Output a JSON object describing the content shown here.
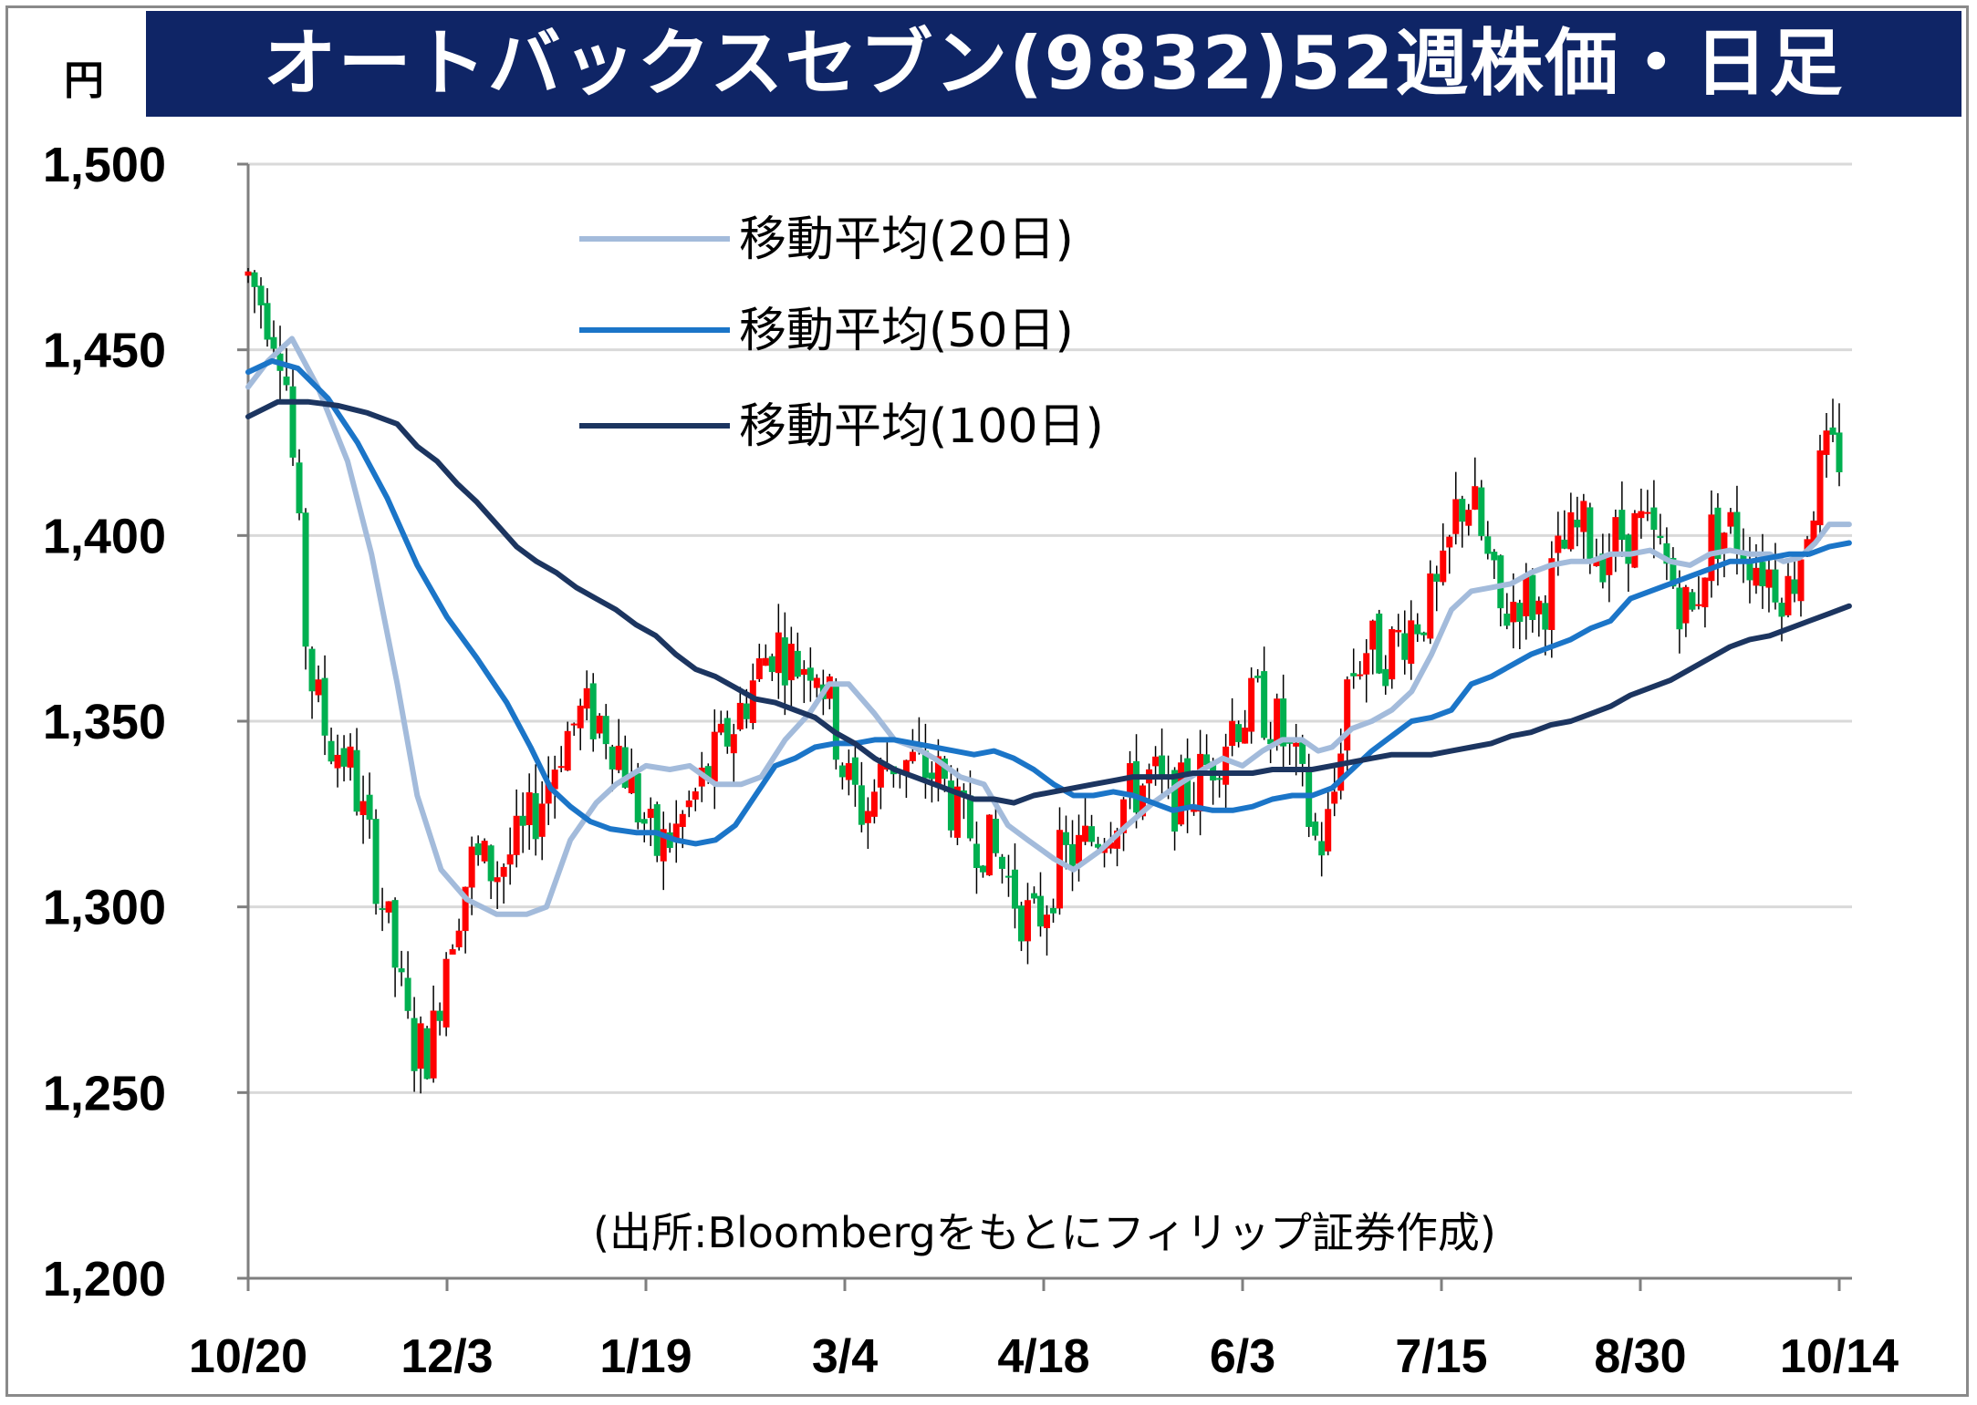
{
  "header": {
    "unit": "円",
    "title": "オートバックスセブン(9832)52週株価・日足"
  },
  "chart_data": {
    "type": "candlestick",
    "ylim": [
      1200,
      1500
    ],
    "yticks": [
      1200,
      1250,
      1300,
      1350,
      1400,
      1450,
      1500
    ],
    "ytick_labels": [
      "1,200",
      "1,250",
      "1,300",
      "1,350",
      "1,400",
      "1,450",
      "1,500"
    ],
    "xlim": [
      0,
      8
    ],
    "xticks": [
      0,
      1,
      2,
      3,
      4,
      5,
      6,
      7,
      8
    ],
    "xtick_labels": [
      "10/20",
      "12/3",
      "1/19",
      "3/4",
      "4/18",
      "6/3",
      "7/15",
      "8/30",
      "10/14"
    ],
    "grid": true,
    "legend_position": "top-center",
    "annotation": "(出所:Bloombergをもとにフィリップ証券作成)",
    "up_color": "#ff0000",
    "down_color": "#00b050",
    "candle_anchors": [
      [
        0.0,
        1470
      ],
      [
        0.1,
        1460
      ],
      [
        0.18,
        1450
      ],
      [
        0.24,
        1410
      ],
      [
        0.3,
        1365
      ],
      [
        0.4,
        1345
      ],
      [
        0.5,
        1340
      ],
      [
        0.62,
        1315
      ],
      [
        0.72,
        1290
      ],
      [
        0.82,
        1262
      ],
      [
        0.92,
        1262
      ],
      [
        1.0,
        1290
      ],
      [
        1.12,
        1312
      ],
      [
        1.25,
        1310
      ],
      [
        1.38,
        1318
      ],
      [
        1.48,
        1330
      ],
      [
        1.58,
        1345
      ],
      [
        1.68,
        1352
      ],
      [
        1.78,
        1350
      ],
      [
        1.86,
        1343
      ],
      [
        1.95,
        1328
      ],
      [
        2.05,
        1315
      ],
      [
        2.15,
        1320
      ],
      [
        2.25,
        1330
      ],
      [
        2.35,
        1340
      ],
      [
        2.45,
        1350
      ],
      [
        2.55,
        1362
      ],
      [
        2.65,
        1372
      ],
      [
        2.75,
        1365
      ],
      [
        2.85,
        1368
      ],
      [
        2.92,
        1355
      ],
      [
        3.0,
        1335
      ],
      [
        3.1,
        1325
      ],
      [
        3.22,
        1340
      ],
      [
        3.35,
        1338
      ],
      [
        3.48,
        1335
      ],
      [
        3.58,
        1322
      ],
      [
        3.7,
        1318
      ],
      [
        3.8,
        1310
      ],
      [
        3.88,
        1300
      ],
      [
        3.95,
        1295
      ],
      [
        4.0,
        1300
      ],
      [
        4.08,
        1312
      ],
      [
        4.18,
        1315
      ],
      [
        4.3,
        1322
      ],
      [
        4.42,
        1330
      ],
      [
        4.55,
        1335
      ],
      [
        4.62,
        1328
      ],
      [
        4.75,
        1332
      ],
      [
        4.85,
        1340
      ],
      [
        4.95,
        1350
      ],
      [
        5.08,
        1355
      ],
      [
        5.18,
        1348
      ],
      [
        5.28,
        1335
      ],
      [
        5.38,
        1315
      ],
      [
        5.45,
        1325
      ],
      [
        5.52,
        1360
      ],
      [
        5.62,
        1370
      ],
      [
        5.72,
        1368
      ],
      [
        5.82,
        1375
      ],
      [
        5.92,
        1380
      ],
      [
        6.0,
        1385
      ],
      [
        6.08,
        1408
      ],
      [
        6.15,
        1410
      ],
      [
        6.22,
        1395
      ],
      [
        6.3,
        1378
      ],
      [
        6.4,
        1385
      ],
      [
        6.5,
        1380
      ],
      [
        6.6,
        1395
      ],
      [
        6.7,
        1402
      ],
      [
        6.8,
        1395
      ],
      [
        6.9,
        1400
      ],
      [
        7.0,
        1402
      ],
      [
        7.1,
        1395
      ],
      [
        7.18,
        1385
      ],
      [
        7.26,
        1378
      ],
      [
        7.35,
        1400
      ],
      [
        7.45,
        1402
      ],
      [
        7.55,
        1395
      ],
      [
        7.65,
        1390
      ],
      [
        7.75,
        1385
      ],
      [
        7.85,
        1405
      ],
      [
        7.92,
        1420
      ],
      [
        8.0,
        1422
      ]
    ],
    "series": [
      {
        "name": "移動平均(20日)",
        "color": "#a3bbdb",
        "points": [
          [
            0.0,
            1440
          ],
          [
            0.1,
            1447
          ],
          [
            0.22,
            1453
          ],
          [
            0.35,
            1440
          ],
          [
            0.5,
            1420
          ],
          [
            0.62,
            1395
          ],
          [
            0.75,
            1360
          ],
          [
            0.85,
            1330
          ],
          [
            0.97,
            1310
          ],
          [
            1.1,
            1302
          ],
          [
            1.25,
            1298
          ],
          [
            1.4,
            1298
          ],
          [
            1.5,
            1300
          ],
          [
            1.62,
            1318
          ],
          [
            1.75,
            1328
          ],
          [
            1.85,
            1333
          ],
          [
            2.0,
            1338
          ],
          [
            2.12,
            1337
          ],
          [
            2.22,
            1338
          ],
          [
            2.35,
            1333
          ],
          [
            2.48,
            1333
          ],
          [
            2.58,
            1335
          ],
          [
            2.7,
            1345
          ],
          [
            2.82,
            1352
          ],
          [
            2.92,
            1360
          ],
          [
            3.02,
            1360
          ],
          [
            3.15,
            1352
          ],
          [
            3.25,
            1345
          ],
          [
            3.35,
            1343
          ],
          [
            3.45,
            1340
          ],
          [
            3.58,
            1335
          ],
          [
            3.7,
            1333
          ],
          [
            3.82,
            1322
          ],
          [
            3.92,
            1318
          ],
          [
            4.05,
            1313
          ],
          [
            4.15,
            1310
          ],
          [
            4.28,
            1315
          ],
          [
            4.42,
            1322
          ],
          [
            4.55,
            1328
          ],
          [
            4.68,
            1333
          ],
          [
            4.8,
            1337
          ],
          [
            4.9,
            1340
          ],
          [
            5.0,
            1338
          ],
          [
            5.1,
            1342
          ],
          [
            5.2,
            1345
          ],
          [
            5.3,
            1345
          ],
          [
            5.38,
            1342
          ],
          [
            5.45,
            1343
          ],
          [
            5.55,
            1348
          ],
          [
            5.65,
            1350
          ],
          [
            5.75,
            1353
          ],
          [
            5.85,
            1358
          ],
          [
            5.95,
            1368
          ],
          [
            6.05,
            1380
          ],
          [
            6.15,
            1385
          ],
          [
            6.25,
            1386
          ],
          [
            6.35,
            1387
          ],
          [
            6.45,
            1390
          ],
          [
            6.55,
            1392
          ],
          [
            6.65,
            1393
          ],
          [
            6.75,
            1393
          ],
          [
            6.85,
            1395
          ],
          [
            6.95,
            1395
          ],
          [
            7.05,
            1396
          ],
          [
            7.15,
            1393
          ],
          [
            7.25,
            1392
          ],
          [
            7.35,
            1395
          ],
          [
            7.45,
            1396
          ],
          [
            7.55,
            1395
          ],
          [
            7.65,
            1395
          ],
          [
            7.72,
            1393
          ],
          [
            7.8,
            1394
          ],
          [
            7.88,
            1398
          ],
          [
            7.95,
            1403
          ],
          [
            8.05,
            1403
          ]
        ]
      },
      {
        "name": "移動平均(50日)",
        "color": "#1b75c8",
        "points": [
          [
            0.0,
            1444
          ],
          [
            0.12,
            1447
          ],
          [
            0.25,
            1445
          ],
          [
            0.4,
            1437
          ],
          [
            0.55,
            1425
          ],
          [
            0.7,
            1410
          ],
          [
            0.85,
            1392
          ],
          [
            1.0,
            1378
          ],
          [
            1.15,
            1367
          ],
          [
            1.3,
            1355
          ],
          [
            1.42,
            1343
          ],
          [
            1.52,
            1332
          ],
          [
            1.62,
            1327
          ],
          [
            1.72,
            1323
          ],
          [
            1.82,
            1321
          ],
          [
            1.95,
            1320
          ],
          [
            2.05,
            1320
          ],
          [
            2.15,
            1318
          ],
          [
            2.25,
            1317
          ],
          [
            2.35,
            1318
          ],
          [
            2.45,
            1322
          ],
          [
            2.55,
            1330
          ],
          [
            2.65,
            1338
          ],
          [
            2.75,
            1340
          ],
          [
            2.85,
            1343
          ],
          [
            2.95,
            1344
          ],
          [
            3.05,
            1344
          ],
          [
            3.15,
            1345
          ],
          [
            3.25,
            1345
          ],
          [
            3.35,
            1344
          ],
          [
            3.45,
            1343
          ],
          [
            3.55,
            1342
          ],
          [
            3.65,
            1341
          ],
          [
            3.75,
            1342
          ],
          [
            3.85,
            1340
          ],
          [
            3.95,
            1337
          ],
          [
            4.05,
            1333
          ],
          [
            4.15,
            1330
          ],
          [
            4.25,
            1330
          ],
          [
            4.35,
            1331
          ],
          [
            4.45,
            1330
          ],
          [
            4.55,
            1328
          ],
          [
            4.65,
            1326
          ],
          [
            4.75,
            1327
          ],
          [
            4.85,
            1326
          ],
          [
            4.95,
            1326
          ],
          [
            5.05,
            1327
          ],
          [
            5.15,
            1329
          ],
          [
            5.25,
            1330
          ],
          [
            5.35,
            1330
          ],
          [
            5.45,
            1332
          ],
          [
            5.55,
            1337
          ],
          [
            5.65,
            1342
          ],
          [
            5.75,
            1346
          ],
          [
            5.85,
            1350
          ],
          [
            5.95,
            1351
          ],
          [
            6.05,
            1353
          ],
          [
            6.15,
            1360
          ],
          [
            6.25,
            1362
          ],
          [
            6.35,
            1365
          ],
          [
            6.45,
            1368
          ],
          [
            6.55,
            1370
          ],
          [
            6.65,
            1372
          ],
          [
            6.75,
            1375
          ],
          [
            6.85,
            1377
          ],
          [
            6.95,
            1383
          ],
          [
            7.05,
            1385
          ],
          [
            7.15,
            1387
          ],
          [
            7.25,
            1389
          ],
          [
            7.35,
            1391
          ],
          [
            7.45,
            1393
          ],
          [
            7.55,
            1393
          ],
          [
            7.65,
            1394
          ],
          [
            7.75,
            1395
          ],
          [
            7.85,
            1395
          ],
          [
            7.95,
            1397
          ],
          [
            8.05,
            1398
          ]
        ]
      },
      {
        "name": "移動平均(100日)",
        "color": "#1c3560",
        "points": [
          [
            0.0,
            1432
          ],
          [
            0.15,
            1436
          ],
          [
            0.3,
            1436
          ],
          [
            0.45,
            1435
          ],
          [
            0.6,
            1433
          ],
          [
            0.75,
            1430
          ],
          [
            0.85,
            1424
          ],
          [
            0.95,
            1420
          ],
          [
            1.05,
            1414
          ],
          [
            1.15,
            1409
          ],
          [
            1.25,
            1403
          ],
          [
            1.35,
            1397
          ],
          [
            1.45,
            1393
          ],
          [
            1.55,
            1390
          ],
          [
            1.65,
            1386
          ],
          [
            1.75,
            1383
          ],
          [
            1.85,
            1380
          ],
          [
            1.95,
            1376
          ],
          [
            2.05,
            1373
          ],
          [
            2.15,
            1368
          ],
          [
            2.25,
            1364
          ],
          [
            2.35,
            1362
          ],
          [
            2.45,
            1359
          ],
          [
            2.55,
            1356
          ],
          [
            2.65,
            1355
          ],
          [
            2.75,
            1353
          ],
          [
            2.85,
            1351
          ],
          [
            2.95,
            1347
          ],
          [
            3.05,
            1344
          ],
          [
            3.15,
            1340
          ],
          [
            3.25,
            1337
          ],
          [
            3.35,
            1335
          ],
          [
            3.45,
            1333
          ],
          [
            3.55,
            1331
          ],
          [
            3.65,
            1329
          ],
          [
            3.75,
            1329
          ],
          [
            3.85,
            1328
          ],
          [
            3.95,
            1330
          ],
          [
            4.05,
            1331
          ],
          [
            4.15,
            1332
          ],
          [
            4.25,
            1333
          ],
          [
            4.35,
            1334
          ],
          [
            4.45,
            1335
          ],
          [
            4.55,
            1335
          ],
          [
            4.65,
            1335
          ],
          [
            4.75,
            1336
          ],
          [
            4.85,
            1336
          ],
          [
            4.95,
            1336
          ],
          [
            5.05,
            1336
          ],
          [
            5.15,
            1337
          ],
          [
            5.25,
            1337
          ],
          [
            5.35,
            1337
          ],
          [
            5.45,
            1338
          ],
          [
            5.55,
            1339
          ],
          [
            5.65,
            1340
          ],
          [
            5.75,
            1341
          ],
          [
            5.85,
            1341
          ],
          [
            5.95,
            1341
          ],
          [
            6.05,
            1342
          ],
          [
            6.15,
            1343
          ],
          [
            6.25,
            1344
          ],
          [
            6.35,
            1346
          ],
          [
            6.45,
            1347
          ],
          [
            6.55,
            1349
          ],
          [
            6.65,
            1350
          ],
          [
            6.75,
            1352
          ],
          [
            6.85,
            1354
          ],
          [
            6.95,
            1357
          ],
          [
            7.05,
            1359
          ],
          [
            7.15,
            1361
          ],
          [
            7.25,
            1364
          ],
          [
            7.35,
            1367
          ],
          [
            7.45,
            1370
          ],
          [
            7.55,
            1372
          ],
          [
            7.65,
            1373
          ],
          [
            7.75,
            1375
          ],
          [
            7.85,
            1377
          ],
          [
            7.95,
            1379
          ],
          [
            8.05,
            1381
          ]
        ]
      }
    ]
  }
}
